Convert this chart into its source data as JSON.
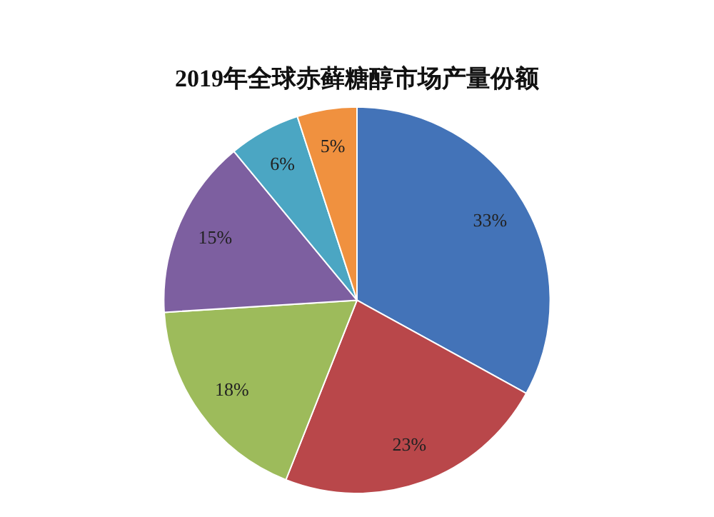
{
  "chart_data": {
    "type": "pie",
    "title": "2019年全球赤藓糖醇市场产量份额",
    "categories": [
      null,
      null,
      null,
      null,
      null,
      null
    ],
    "values": [
      33,
      23,
      18,
      15,
      6,
      5
    ],
    "colors": [
      "#4373b8",
      "#b9474a",
      "#9dbb5b",
      "#7d5fa0",
      "#4ba6c3",
      "#f0913f"
    ],
    "value_labels": [
      "33%",
      "23%",
      "18%",
      "15%",
      "6%",
      "5%"
    ],
    "legend": false
  }
}
